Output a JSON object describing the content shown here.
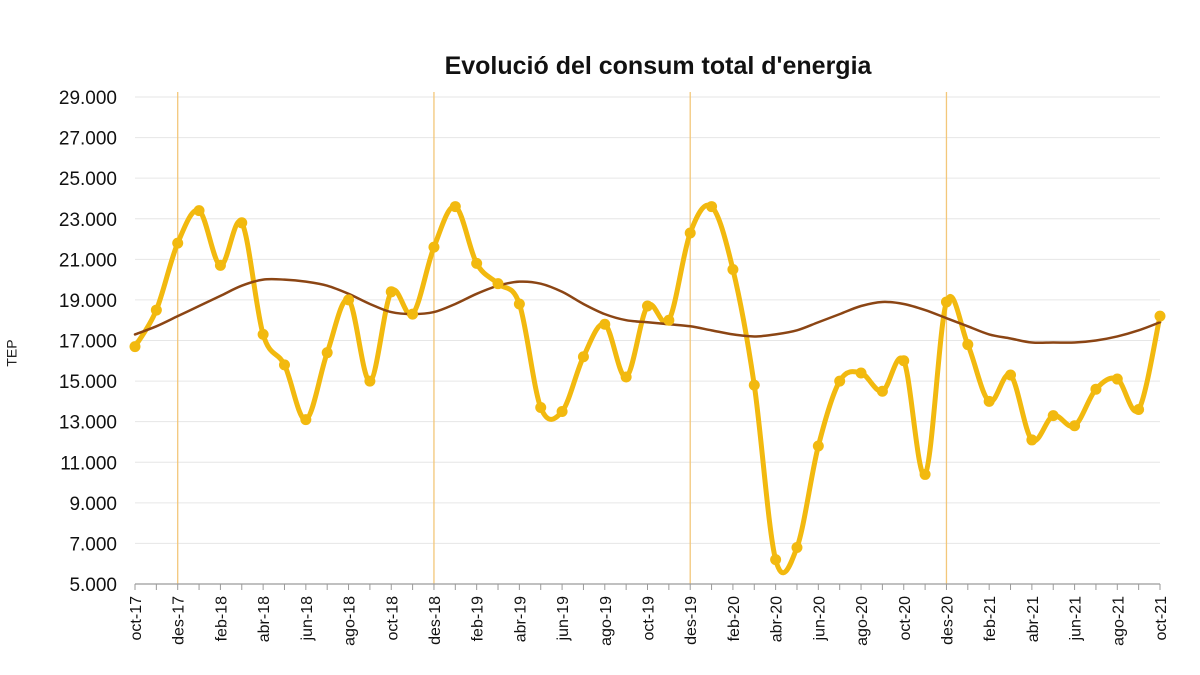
{
  "chart_data": {
    "type": "line",
    "title": "Evolució del consum total d'energia",
    "ylabel": "TEP",
    "ylim": [
      5000,
      29000
    ],
    "yticks": [
      5000,
      7000,
      9000,
      11000,
      13000,
      15000,
      17000,
      19000,
      21000,
      23000,
      25000,
      27000,
      29000
    ],
    "ytick_labels": [
      "5.000",
      "7.000",
      "9.000",
      "11.000",
      "13.000",
      "15.000",
      "17.000",
      "19.000",
      "21.000",
      "23.000",
      "25.000",
      "27.000",
      "29.000"
    ],
    "x": [
      "oct-17",
      "nov-17",
      "des-17",
      "gen-18",
      "feb-18",
      "mar-18",
      "abr-18",
      "mai-18",
      "jun-18",
      "jul-18",
      "ago-18",
      "set-18",
      "oct-18",
      "nov-18",
      "des-18",
      "gen-19",
      "feb-19",
      "mar-19",
      "abr-19",
      "mai-19",
      "jun-19",
      "jul-19",
      "ago-19",
      "set-19",
      "oct-19",
      "nov-19",
      "des-19",
      "gen-20",
      "feb-20",
      "mar-20",
      "abr-20",
      "mai-20",
      "jun-20",
      "jul-20",
      "ago-20",
      "set-20",
      "oct-20",
      "nov-20",
      "des-20",
      "gen-21",
      "feb-21",
      "mar-21",
      "abr-21",
      "mai-21",
      "jun-21",
      "jul-21",
      "ago-21",
      "set-21",
      "oct-21"
    ],
    "x_tick_labels": [
      "oct-17",
      "des-17",
      "feb-18",
      "abr-18",
      "jun-18",
      "ago-18",
      "oct-18",
      "des-18",
      "feb-19",
      "abr-19",
      "jun-19",
      "ago-19",
      "oct-19",
      "des-19",
      "feb-20",
      "abr-20",
      "jun-20",
      "ago-20",
      "oct-20",
      "des-20",
      "feb-21",
      "abr-21",
      "jun-21",
      "ago-21",
      "oct-21"
    ],
    "grid": "horizontal",
    "vertical_markers": [
      "des-17",
      "des-18",
      "des-19",
      "des-20"
    ],
    "series": [
      {
        "color": "#f2b90f",
        "markers": true,
        "values": [
          16700,
          18500,
          21800,
          23400,
          20700,
          22800,
          17300,
          15800,
          13100,
          16400,
          19000,
          15000,
          19400,
          18300,
          21600,
          23600,
          20800,
          19800,
          18800,
          13700,
          13500,
          16200,
          17800,
          15200,
          18700,
          18000,
          22300,
          23600,
          20500,
          14800,
          6200,
          6800,
          11800,
          15000,
          15400,
          14500,
          16000,
          10400,
          18900,
          16800,
          14000,
          15300,
          12100,
          13300,
          12800,
          14600,
          15100,
          13600,
          18200
        ]
      },
      {
        "color": "#8b4514",
        "markers": false,
        "values": [
          17300,
          17700,
          18200,
          18700,
          19200,
          19700,
          20000,
          20000,
          19900,
          19700,
          19300,
          18800,
          18400,
          18300,
          18400,
          18800,
          19300,
          19700,
          19900,
          19800,
          19400,
          18800,
          18300,
          18000,
          17900,
          17800,
          17700,
          17500,
          17300,
          17200,
          17300,
          17500,
          17900,
          18300,
          18700,
          18900,
          18800,
          18500,
          18100,
          17700,
          17300,
          17100,
          16900,
          16900,
          16900,
          17000,
          17200,
          17500,
          17900
        ]
      }
    ]
  }
}
